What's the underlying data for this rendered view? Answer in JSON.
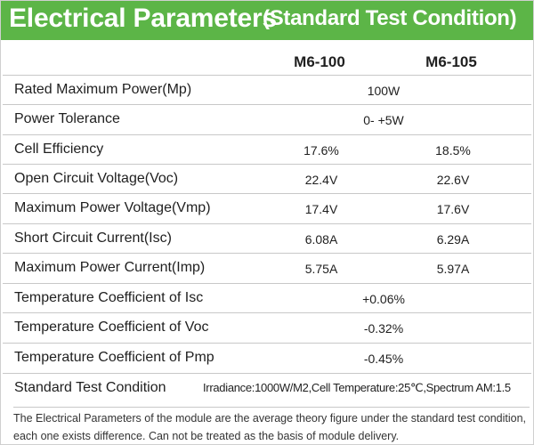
{
  "header": {
    "title_main": "Electrical Parameters",
    "title_sub": "(Standard Test Condition)",
    "bg_color": "#5cb547"
  },
  "columns": {
    "model_1": "M6-100",
    "model_2": "M6-105"
  },
  "rows": [
    {
      "label": "Rated Maximum Power(Mp)",
      "value": "100W"
    },
    {
      "label": "Power Tolerance",
      "value": "0- +5W"
    },
    {
      "label": "Cell Efficiency",
      "v1": "17.6%",
      "v2": "18.5%"
    },
    {
      "label": "Open Circuit Voltage(Voc)",
      "v1": "22.4V",
      "v2": "22.6V"
    },
    {
      "label": "Maximum Power Voltage(Vmp)",
      "v1": "17.4V",
      "v2": "17.6V"
    },
    {
      "label": "Short Circuit Current(Isc)",
      "v1": "6.08A",
      "v2": "6.29A"
    },
    {
      "label": "Maximum Power Current(Imp)",
      "v1": "5.75A",
      "v2": "5.97A"
    },
    {
      "label": "Temperature Coefficient of Isc",
      "value": "+0.06%"
    },
    {
      "label": "Temperature Coefficient of Voc",
      "value": "-0.32%"
    },
    {
      "label": "Temperature Coefficient of Pmp",
      "value": "-0.45%"
    },
    {
      "label": "Standard Test Condition",
      "condition": "Irradiance:1000W/M2,Cell Temperature:25℃,Spectrum AM:1.5"
    }
  ],
  "note": {
    "line1": "The Electrical Parameters of the module are the average theory figure under the standard test condition,",
    "line2": "each one exists difference. Can not be treated as the basis of module delivery."
  }
}
